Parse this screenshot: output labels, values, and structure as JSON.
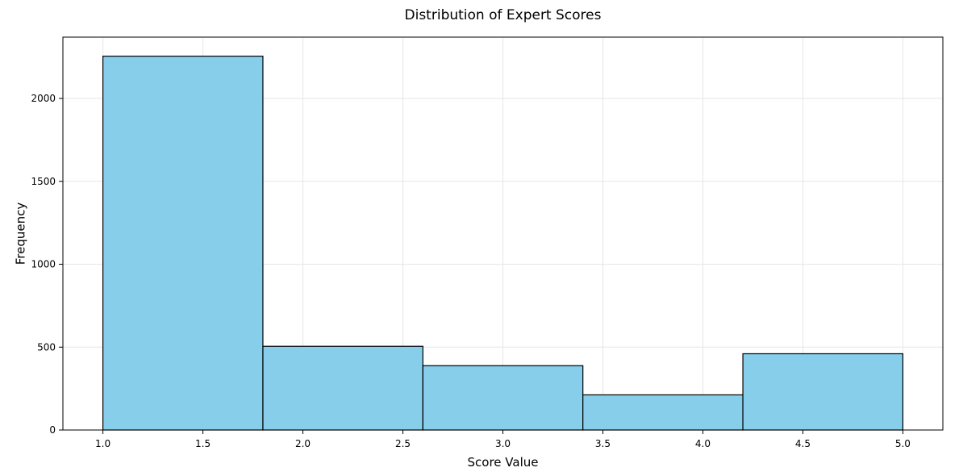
{
  "chart_data": {
    "type": "bar",
    "title": "Distribution of Expert Scores",
    "xlabel": "Score Value",
    "ylabel": "Frequency",
    "xlim": [
      0.8,
      5.2
    ],
    "ylim": [
      0,
      2370
    ],
    "xticks": [
      1.0,
      1.5,
      2.0,
      2.5,
      3.0,
      3.5,
      4.0,
      4.5,
      5.0
    ],
    "xtick_labels": [
      "1.0",
      "1.5",
      "2.0",
      "2.5",
      "3.0",
      "3.5",
      "4.0",
      "4.5",
      "5.0"
    ],
    "yticks": [
      0,
      500,
      1000,
      1500,
      2000
    ],
    "ytick_labels": [
      "0",
      "500",
      "1000",
      "1500",
      "2000"
    ],
    "grid": true,
    "bins": [
      {
        "start": 1.0,
        "end": 1.8,
        "value": 2255
      },
      {
        "start": 1.8,
        "end": 2.6,
        "value": 505
      },
      {
        "start": 2.6,
        "end": 3.4,
        "value": 388
      },
      {
        "start": 3.4,
        "end": 4.2,
        "value": 212
      },
      {
        "start": 4.2,
        "end": 5.0,
        "value": 460
      }
    ],
    "colors": {
      "bar_fill": "#87ceeb",
      "bar_edge": "#000000",
      "grid": "#e6e6e6"
    }
  }
}
